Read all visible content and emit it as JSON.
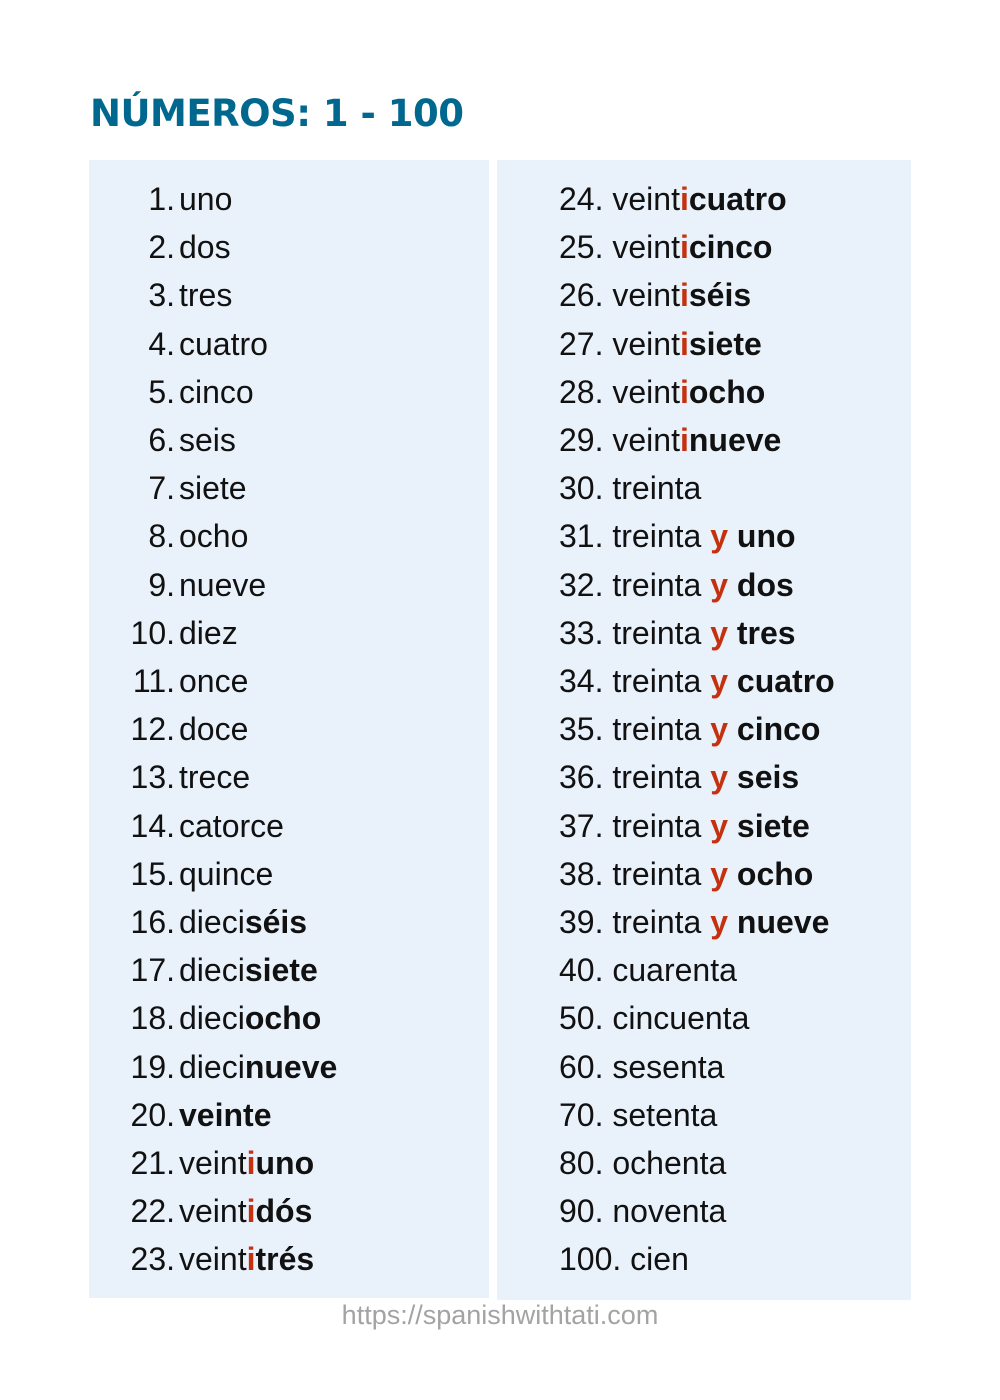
{
  "title": "NÚMEROS: 1 - 100",
  "colors": {
    "title": "#00688f",
    "highlight": "#c4310e",
    "panel": "#e9f1fb"
  },
  "left_column": [
    {
      "n": "1.",
      "parts": [
        {
          "t": "uno",
          "s": "r"
        }
      ]
    },
    {
      "n": "2.",
      "parts": [
        {
          "t": "dos",
          "s": "r"
        }
      ]
    },
    {
      "n": "3.",
      "parts": [
        {
          "t": "tres",
          "s": "r"
        }
      ]
    },
    {
      "n": "4.",
      "parts": [
        {
          "t": "cuatro",
          "s": "r"
        }
      ]
    },
    {
      "n": "5.",
      "parts": [
        {
          "t": "cinco",
          "s": "r"
        }
      ]
    },
    {
      "n": "6.",
      "parts": [
        {
          "t": "seis",
          "s": "r"
        }
      ]
    },
    {
      "n": "7.",
      "parts": [
        {
          "t": "siete",
          "s": "r"
        }
      ]
    },
    {
      "n": "8.",
      "parts": [
        {
          "t": "ocho",
          "s": "r"
        }
      ]
    },
    {
      "n": "9.",
      "parts": [
        {
          "t": "nueve",
          "s": "r"
        }
      ]
    },
    {
      "n": "10.",
      "parts": [
        {
          "t": "diez",
          "s": "r"
        }
      ]
    },
    {
      "n": "11.",
      "parts": [
        {
          "t": "once",
          "s": "r"
        }
      ]
    },
    {
      "n": "12.",
      "parts": [
        {
          "t": "doce",
          "s": "r"
        }
      ]
    },
    {
      "n": "13.",
      "parts": [
        {
          "t": "trece",
          "s": "r"
        }
      ]
    },
    {
      "n": "14.",
      "parts": [
        {
          "t": "catorce",
          "s": "r"
        }
      ]
    },
    {
      "n": "15.",
      "parts": [
        {
          "t": "quince",
          "s": "r"
        }
      ]
    },
    {
      "n": "16.",
      "parts": [
        {
          "t": "dieci",
          "s": "r"
        },
        {
          "t": "séis",
          "s": "b"
        }
      ]
    },
    {
      "n": "17.",
      "parts": [
        {
          "t": "dieci",
          "s": "r"
        },
        {
          "t": "siete",
          "s": "b"
        }
      ]
    },
    {
      "n": "18.",
      "parts": [
        {
          "t": "dieci",
          "s": "r"
        },
        {
          "t": "ocho",
          "s": "b"
        }
      ]
    },
    {
      "n": "19.",
      "parts": [
        {
          "t": "dieci",
          "s": "r"
        },
        {
          "t": "nueve",
          "s": "b"
        }
      ]
    },
    {
      "n": "20.",
      "parts": [
        {
          "t": "veinte",
          "s": "b"
        }
      ]
    },
    {
      "n": "21.",
      "parts": [
        {
          "t": "veint",
          "s": "r"
        },
        {
          "t": "i",
          "s": "red"
        },
        {
          "t": "uno",
          "s": "b"
        }
      ]
    },
    {
      "n": "22.",
      "parts": [
        {
          "t": "veint",
          "s": "r"
        },
        {
          "t": "i",
          "s": "red"
        },
        {
          "t": "dós",
          "s": "b"
        }
      ]
    },
    {
      "n": "23.",
      "parts": [
        {
          "t": "veint",
          "s": "r"
        },
        {
          "t": "i",
          "s": "red"
        },
        {
          "t": "trés",
          "s": "b"
        }
      ]
    }
  ],
  "right_column": [
    {
      "n": "24.",
      "parts": [
        {
          "t": "veint",
          "s": "r"
        },
        {
          "t": "i",
          "s": "red"
        },
        {
          "t": "cuatro",
          "s": "b"
        }
      ]
    },
    {
      "n": "25.",
      "parts": [
        {
          "t": "veint",
          "s": "r"
        },
        {
          "t": "i",
          "s": "red"
        },
        {
          "t": "cinco",
          "s": "b"
        }
      ]
    },
    {
      "n": "26.",
      "parts": [
        {
          "t": "veint",
          "s": "r"
        },
        {
          "t": "i",
          "s": "red"
        },
        {
          "t": "séis",
          "s": "b"
        }
      ]
    },
    {
      "n": "27.",
      "parts": [
        {
          "t": "veint",
          "s": "r"
        },
        {
          "t": "i",
          "s": "red"
        },
        {
          "t": "siete",
          "s": "b"
        }
      ]
    },
    {
      "n": "28.",
      "parts": [
        {
          "t": "veint",
          "s": "r"
        },
        {
          "t": "i",
          "s": "red"
        },
        {
          "t": "ocho",
          "s": "b"
        }
      ]
    },
    {
      "n": "29.",
      "parts": [
        {
          "t": "veint",
          "s": "r"
        },
        {
          "t": "i",
          "s": "red"
        },
        {
          "t": "nueve",
          "s": "b"
        }
      ]
    },
    {
      "n": "30.",
      "parts": [
        {
          "t": "treinta",
          "s": "r"
        }
      ]
    },
    {
      "n": "31.",
      "parts": [
        {
          "t": "treinta ",
          "s": "r"
        },
        {
          "t": "y",
          "s": "red"
        },
        {
          "t": " ",
          "s": "r"
        },
        {
          "t": "uno",
          "s": "b"
        }
      ]
    },
    {
      "n": "32.",
      "parts": [
        {
          "t": "treinta ",
          "s": "r"
        },
        {
          "t": "y",
          "s": "red"
        },
        {
          "t": " ",
          "s": "r"
        },
        {
          "t": "dos",
          "s": "b"
        }
      ]
    },
    {
      "n": "33.",
      "parts": [
        {
          "t": "treinta ",
          "s": "r"
        },
        {
          "t": "y",
          "s": "red"
        },
        {
          "t": " ",
          "s": "r"
        },
        {
          "t": "tres",
          "s": "b"
        }
      ]
    },
    {
      "n": "34.",
      "parts": [
        {
          "t": "treinta ",
          "s": "r"
        },
        {
          "t": "y",
          "s": "red"
        },
        {
          "t": " ",
          "s": "r"
        },
        {
          "t": "cuatro",
          "s": "b"
        }
      ]
    },
    {
      "n": "35.",
      "parts": [
        {
          "t": "treinta ",
          "s": "r"
        },
        {
          "t": "y",
          "s": "red"
        },
        {
          "t": " ",
          "s": "r"
        },
        {
          "t": "cinco",
          "s": "b"
        }
      ]
    },
    {
      "n": "36.",
      "parts": [
        {
          "t": "treinta ",
          "s": "r"
        },
        {
          "t": "y",
          "s": "red"
        },
        {
          "t": " ",
          "s": "r"
        },
        {
          "t": "seis",
          "s": "b"
        }
      ]
    },
    {
      "n": "37.",
      "parts": [
        {
          "t": "treinta ",
          "s": "r"
        },
        {
          "t": "y",
          "s": "red"
        },
        {
          "t": " ",
          "s": "r"
        },
        {
          "t": "siete",
          "s": "b"
        }
      ]
    },
    {
      "n": "38.",
      "parts": [
        {
          "t": "treinta ",
          "s": "r"
        },
        {
          "t": "y",
          "s": "red"
        },
        {
          "t": " ",
          "s": "r"
        },
        {
          "t": "ocho",
          "s": "b"
        }
      ]
    },
    {
      "n": "39.",
      "parts": [
        {
          "t": "treinta ",
          "s": "r"
        },
        {
          "t": "y",
          "s": "red"
        },
        {
          "t": " ",
          "s": "r"
        },
        {
          "t": "nueve",
          "s": "b"
        }
      ]
    },
    {
      "n": "40.",
      "parts": [
        {
          "t": "cuarenta",
          "s": "r"
        }
      ]
    },
    {
      "n": "50.",
      "parts": [
        {
          "t": "cincuenta",
          "s": "r"
        }
      ]
    },
    {
      "n": "60.",
      "parts": [
        {
          "t": "sesenta",
          "s": "r"
        }
      ]
    },
    {
      "n": "70.",
      "parts": [
        {
          "t": "setenta",
          "s": "r"
        }
      ]
    },
    {
      "n": "80.",
      "parts": [
        {
          "t": "ochenta",
          "s": "r"
        }
      ]
    },
    {
      "n": "90.",
      "parts": [
        {
          "t": "noventa",
          "s": "r"
        }
      ]
    },
    {
      "n": "100.",
      "parts": [
        {
          "t": "cien",
          "s": "r"
        }
      ]
    }
  ],
  "footer": "https://spanishwithtati.com"
}
